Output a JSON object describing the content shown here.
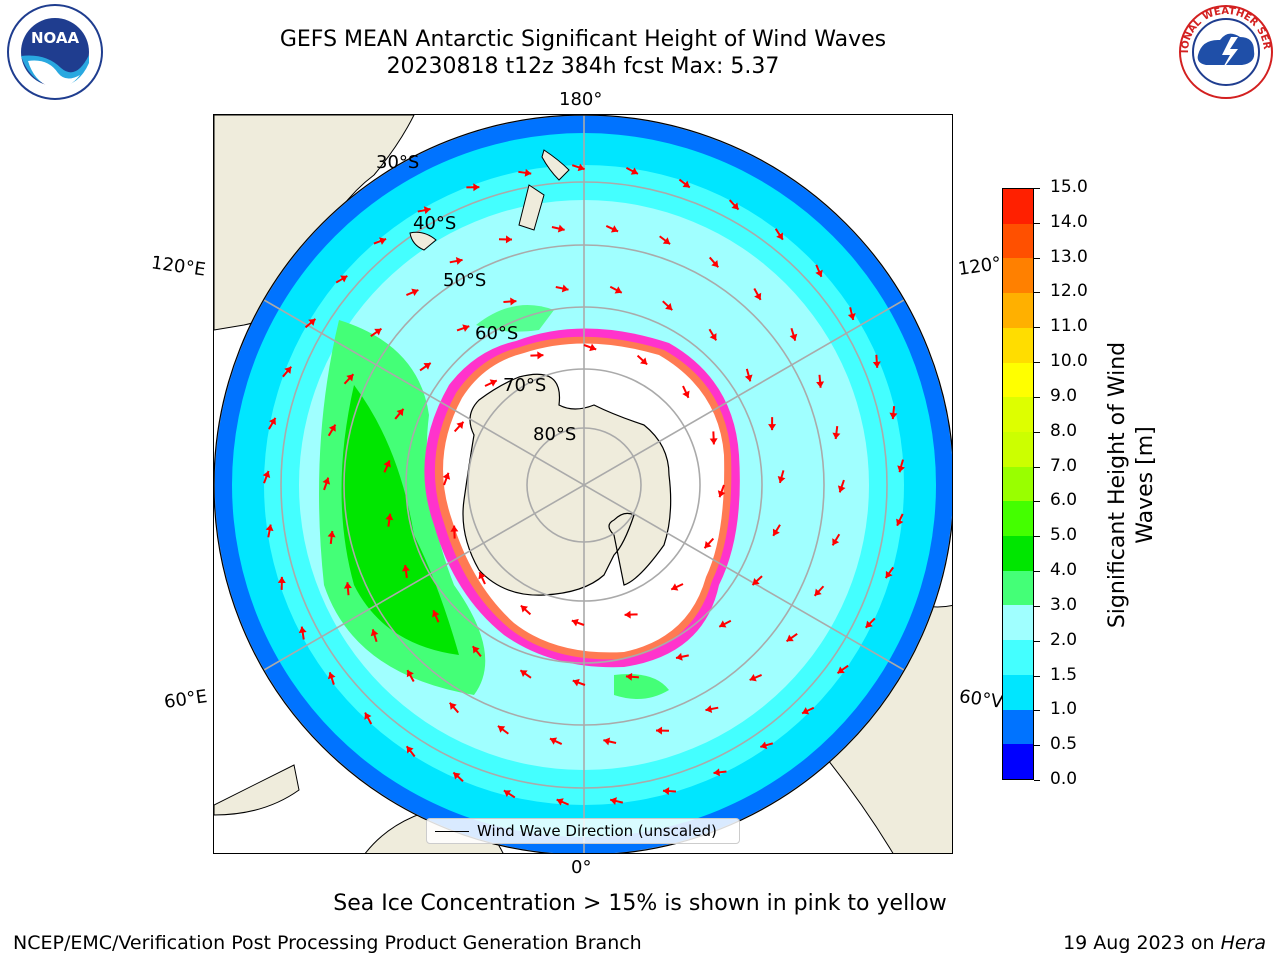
{
  "title": {
    "line1": "GEFS MEAN Antarctic Significant Height of Wind Waves",
    "line2": "20230818 t12z 384h fcst   Max: 5.37"
  },
  "map": {
    "projection": "south-polar-stereographic",
    "latitude_labels": [
      "30°S",
      "40°S",
      "50°S",
      "60°S",
      "70°S",
      "80°S"
    ],
    "longitude_labels": {
      "top": "180°",
      "bottom": "0°",
      "upper_left": "120°E",
      "upper_right": "120°",
      "lower_left": "60°E",
      "lower_right": "60°V"
    },
    "land_color": "#efecdc",
    "ocean_bg_color": "#ffffff",
    "legend_label": "Wind Wave Direction (unscaled)",
    "arrow_color": "#ff0000"
  },
  "colorbar": {
    "label": "Significant Height of Wind\nWaves [m]",
    "tick_labels": [
      "0.0",
      "0.5",
      "1.0",
      "1.5",
      "2.0",
      "3.0",
      "4.0",
      "5.0",
      "6.0",
      "7.0",
      "8.0",
      "9.0",
      "10.0",
      "11.0",
      "12.0",
      "13.0",
      "14.0",
      "15.0"
    ],
    "colors": [
      "#0000ff",
      "#0073ff",
      "#00e6ff",
      "#44ffff",
      "#a0ffff",
      "#44ff77",
      "#00e600",
      "#44ff00",
      "#99ff00",
      "#ccff00",
      "#ddff00",
      "#ffff00",
      "#ffdd00",
      "#ffb000",
      "#ff8000",
      "#ff5000",
      "#ff2000",
      "#ff0000"
    ]
  },
  "ice_note": "Sea Ice Concentration > 15% is shown in pink to yellow",
  "footer": {
    "left": "NCEP/EMC/Verification Post Processing Product Generation Branch",
    "right_prefix": "19 Aug 2023 on ",
    "right_host": "Hera"
  },
  "logos": {
    "left": "NOAA",
    "right": "NATIONAL WEATHER SERVICE"
  }
}
